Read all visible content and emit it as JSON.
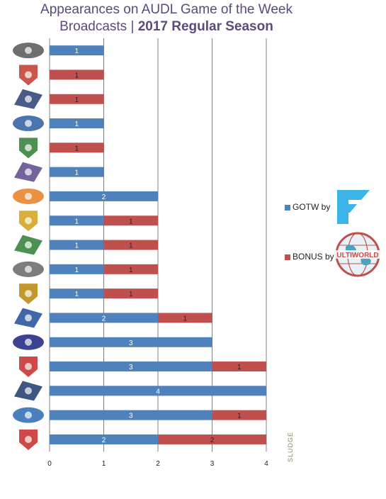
{
  "title": {
    "line1": "Appearances on AUDL Game of the Week",
    "line2_prefix": "Broadcasts | ",
    "line2_bold": "2017 Regular Season"
  },
  "legend": {
    "gotw_label": "GOTW by",
    "bonus_label": "BONUS by",
    "ultiworld_text": "ULTIWORLD"
  },
  "credit": "SLUDGE",
  "colors": {
    "gotw": "#4f81bd",
    "bonus": "#c0504d",
    "grid": "#808080"
  },
  "chart_data": {
    "type": "bar",
    "orientation": "horizontal",
    "stacked": true,
    "xlim": [
      0,
      4
    ],
    "xticks": [
      "0",
      "1",
      "2",
      "3",
      "4"
    ],
    "categories": [
      "team-1",
      "team-2",
      "team-3",
      "team-4",
      "team-5",
      "team-6",
      "team-7",
      "team-8",
      "team-9",
      "team-10",
      "team-11",
      "team-12",
      "team-13",
      "team-14",
      "team-15",
      "team-16",
      "team-17"
    ],
    "category_icons": [
      "wolf-logo-icon",
      "phoenix-logo-icon",
      "shield-disc-logo-icon",
      "wave-logo-icon",
      "dragon-logo-icon",
      "h-logo-icon",
      "sf-logo-icon",
      "eagle-logo-icon",
      "empire-logo-icon",
      "m-logo-icon",
      "cannons-logo-icon",
      "r-logo-icon",
      "roughnecks-logo-icon",
      "rush-logo-icon",
      "helmet-logo-icon",
      "flyers-logo-icon",
      "b-logo-icon"
    ],
    "series": [
      {
        "name": "GOTW",
        "values": [
          1,
          0,
          0,
          1,
          0,
          1,
          2,
          1,
          1,
          1,
          1,
          2,
          3,
          3,
          4,
          3,
          2
        ]
      },
      {
        "name": "BONUS",
        "values": [
          0,
          1,
          1,
          0,
          1,
          0,
          0,
          1,
          1,
          1,
          1,
          1,
          0,
          1,
          0,
          1,
          2
        ]
      }
    ],
    "data_labels": true,
    "grid": true,
    "legend_position": "right"
  }
}
